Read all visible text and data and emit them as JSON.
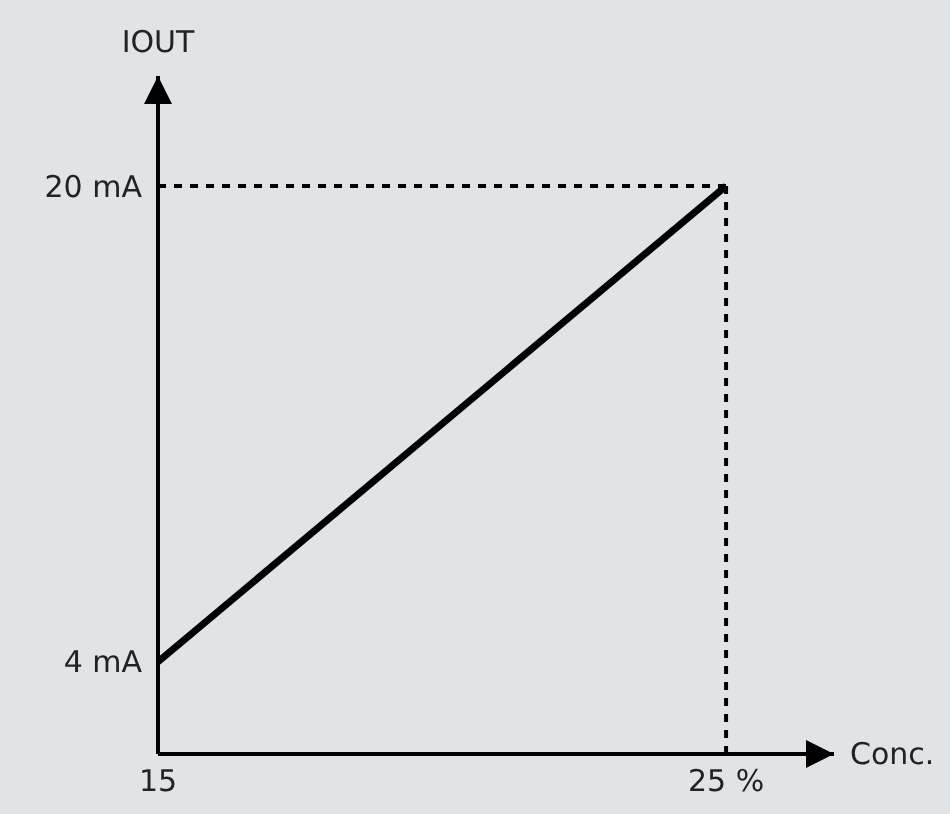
{
  "chart_data": {
    "type": "line",
    "xlabel": "Conc.",
    "ylabel": "IOUT",
    "x": [
      15,
      25
    ],
    "series": [
      {
        "color": "#000000",
        "values": [
          4,
          20
        ]
      }
    ],
    "xlim": [
      15,
      26.9
    ],
    "ylim": [
      0.9,
      23.7
    ],
    "xticks": [
      {
        "value": 15,
        "label": "15"
      },
      {
        "value": 25,
        "label": "25 %"
      }
    ],
    "yticks": [
      {
        "value": 4,
        "label": "4 mA"
      },
      {
        "value": 20,
        "label": "20 mA"
      }
    ],
    "ref_lines": [
      {
        "axis": "y",
        "value": 20,
        "line_style": "dotted",
        "color": "#000000"
      },
      {
        "axis": "x",
        "value": 25,
        "line_style": "dotted",
        "color": "#000000"
      }
    ],
    "grid": false,
    "legend": false,
    "marker": "none",
    "line_style": "solid"
  }
}
